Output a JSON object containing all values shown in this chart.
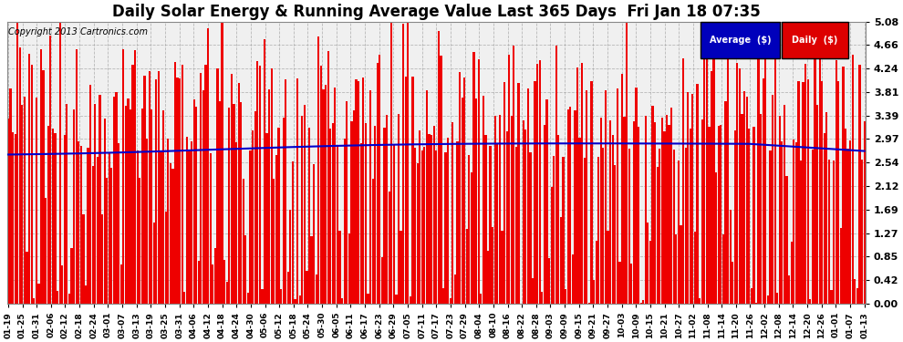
{
  "title": "Daily Solar Energy & Running Average Value Last 365 Days  Fri Jan 18 07:35",
  "copyright": "Copyright 2013 Cartronics.com",
  "ylim": [
    0.0,
    5.08
  ],
  "yticks": [
    0.0,
    0.42,
    0.85,
    1.27,
    1.69,
    2.12,
    2.54,
    2.97,
    3.39,
    3.81,
    4.24,
    4.66,
    5.08
  ],
  "bar_color": "#ee0000",
  "avg_line_color": "#0000cc",
  "background_color": "#ffffff",
  "plot_bg_color": "#f0f0f0",
  "legend_avg_color": "#0000bb",
  "legend_daily_color": "#dd0000",
  "legend_text_color": "#ffffff",
  "title_fontsize": 12,
  "copyright_fontsize": 7,
  "n_days": 365,
  "x_tick_labels": [
    "01-19",
    "01-25",
    "01-31",
    "02-06",
    "02-12",
    "02-18",
    "02-24",
    "03-01",
    "03-07",
    "03-13",
    "03-19",
    "03-25",
    "03-31",
    "04-06",
    "04-12",
    "04-18",
    "04-24",
    "04-30",
    "05-06",
    "05-12",
    "05-18",
    "05-24",
    "05-30",
    "06-05",
    "06-11",
    "06-17",
    "06-23",
    "06-29",
    "07-05",
    "07-11",
    "07-17",
    "07-23",
    "07-29",
    "08-04",
    "08-10",
    "08-16",
    "08-22",
    "08-28",
    "09-03",
    "09-09",
    "09-15",
    "09-21",
    "09-27",
    "10-03",
    "10-09",
    "10-15",
    "10-21",
    "10-27",
    "11-02",
    "11-08",
    "11-14",
    "11-20",
    "11-26",
    "12-02",
    "12-08",
    "12-14",
    "12-20",
    "12-26",
    "01-01",
    "01-07",
    "01-13"
  ]
}
